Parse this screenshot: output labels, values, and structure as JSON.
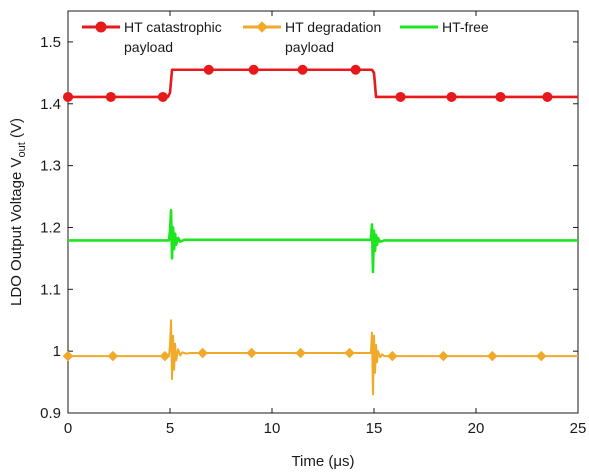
{
  "chart_data": {
    "type": "line",
    "title": "",
    "xlabel": "Time (μs)",
    "ylabel_main": "LDO Output Voltage  V",
    "ylabel_sub": "out",
    "ylabel_unit": " (V)",
    "xlim": [
      0,
      25
    ],
    "ylim": [
      0.9,
      1.55
    ],
    "x_ticks": [
      0,
      5,
      10,
      15,
      20,
      25
    ],
    "x_tick_labels": [
      "0",
      "5",
      "10",
      "15",
      "20",
      "25"
    ],
    "y_ticks": [
      0.9,
      1.0,
      1.1,
      1.2,
      1.3,
      1.4,
      1.5
    ],
    "y_tick_labels": [
      "0.9",
      "1",
      "1.1",
      "1.2",
      "1.3",
      "1.4",
      "1.5"
    ],
    "grid": false,
    "legend_position": "top",
    "legend_catastrophic_line1": "HT catastrophic",
    "legend_catastrophic_line2": "payload",
    "legend_degradation_line1": "HT degradation",
    "legend_degradation_line2": "payload",
    "legend_free": "HT-free",
    "series": [
      {
        "name": "HT catastrophic payload",
        "color": "#e8191a",
        "marker": "circle",
        "x": [
          0,
          4.9,
          5.0,
          5.1,
          14.9,
          15.0,
          15.1,
          25
        ],
        "y": [
          1.411,
          1.411,
          1.418,
          1.455,
          1.455,
          1.45,
          1.411,
          1.411
        ],
        "marker_x": [
          0,
          2.1,
          4.65,
          6.9,
          9.1,
          11.5,
          14.1,
          16.3,
          18.8,
          21.2,
          23.5
        ],
        "marker_y": [
          1.411,
          1.411,
          1.411,
          1.455,
          1.455,
          1.455,
          1.455,
          1.411,
          1.411,
          1.411,
          1.411
        ]
      },
      {
        "name": "HT degradation payload",
        "color": "#f0a928",
        "marker": "diamond",
        "x": [
          0,
          4.95,
          5.0,
          5.05,
          5.1,
          5.15,
          5.2,
          5.25,
          5.3,
          5.4,
          5.5,
          5.6,
          5.8,
          6.0,
          14.85,
          14.9,
          14.95,
          15.0,
          15.05,
          15.1,
          15.15,
          15.2,
          15.3,
          15.4,
          15.5,
          15.7,
          16.0,
          25
        ],
        "y": [
          0.992,
          0.992,
          1.01,
          1.05,
          0.955,
          1.025,
          0.97,
          1.012,
          0.985,
          1.003,
          0.993,
          0.998,
          0.996,
          0.997,
          0.997,
          1.03,
          0.93,
          1.025,
          0.965,
          1.01,
          0.982,
          1.0,
          0.99,
          0.995,
          0.992,
          0.992,
          0.992,
          0.992
        ],
        "marker_x": [
          0,
          2.2,
          4.75,
          6.6,
          9.0,
          11.4,
          13.8,
          15.9,
          18.4,
          20.8,
          23.2
        ],
        "marker_y": [
          0.992,
          0.992,
          0.992,
          0.997,
          0.997,
          0.997,
          0.997,
          0.992,
          0.992,
          0.992,
          0.992
        ]
      },
      {
        "name": "HT-free",
        "color": "#1ee61e",
        "marker": "none",
        "x": [
          0,
          4.95,
          5.0,
          5.05,
          5.1,
          5.15,
          5.2,
          5.25,
          5.3,
          5.4,
          5.5,
          5.7,
          14.85,
          14.9,
          14.95,
          15.0,
          15.05,
          15.1,
          15.15,
          15.2,
          15.3,
          15.5,
          25
        ],
        "y": [
          1.179,
          1.179,
          1.195,
          1.228,
          1.15,
          1.2,
          1.165,
          1.19,
          1.172,
          1.183,
          1.177,
          1.18,
          1.18,
          1.205,
          1.128,
          1.195,
          1.162,
          1.188,
          1.172,
          1.183,
          1.177,
          1.179,
          1.179
        ]
      }
    ]
  }
}
